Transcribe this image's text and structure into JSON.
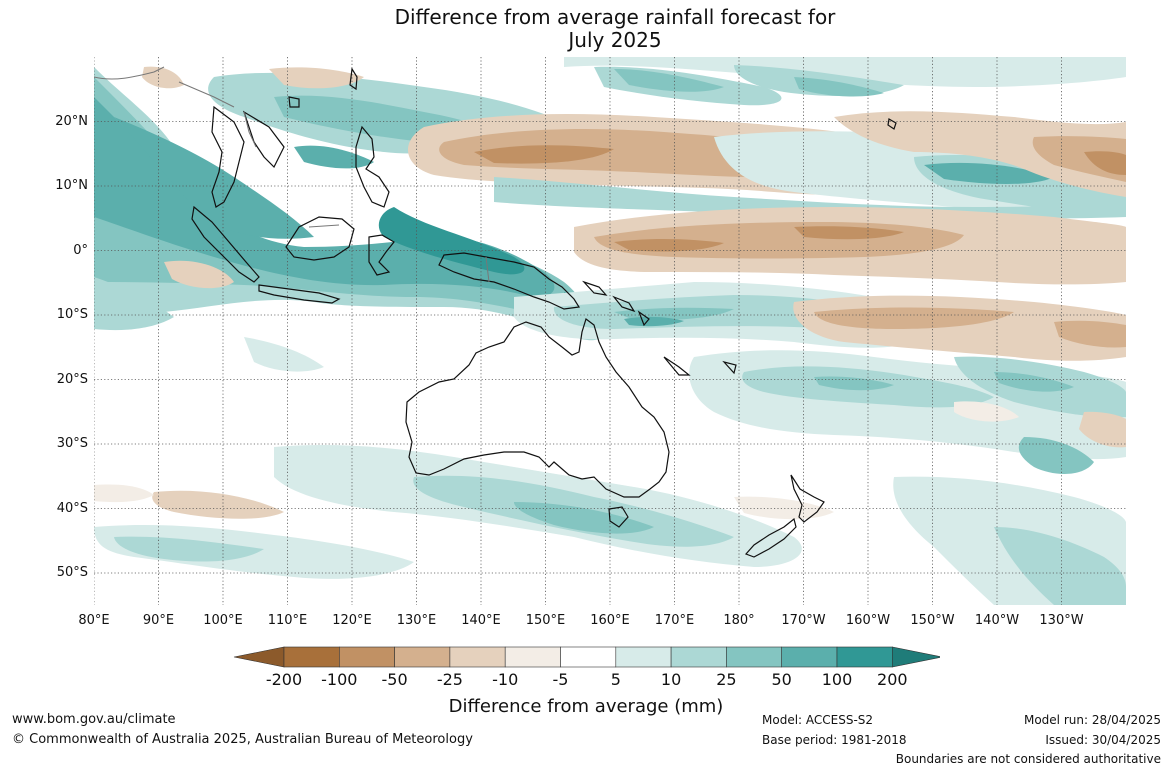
{
  "title": {
    "line1": "Difference from average rainfall forecast for",
    "line2": "July 2025"
  },
  "map": {
    "projection": "equirectangular",
    "lon_range_east": [
      80,
      240
    ],
    "lat_range": [
      -55,
      30
    ],
    "graticule": "dotted",
    "lat_labels": [
      {
        "lat": 20,
        "text": "20°N"
      },
      {
        "lat": 10,
        "text": "10°N"
      },
      {
        "lat": 0,
        "text": "0°"
      },
      {
        "lat": -10,
        "text": "10°S"
      },
      {
        "lat": -20,
        "text": "20°S"
      },
      {
        "lat": -30,
        "text": "30°S"
      },
      {
        "lat": -40,
        "text": "40°S"
      },
      {
        "lat": -50,
        "text": "50°S"
      }
    ],
    "lon_labels": [
      {
        "lon": 80,
        "text": "80°E"
      },
      {
        "lon": 90,
        "text": "90°E"
      },
      {
        "lon": 100,
        "text": "100°E"
      },
      {
        "lon": 110,
        "text": "110°E"
      },
      {
        "lon": 120,
        "text": "120°E"
      },
      {
        "lon": 130,
        "text": "130°E"
      },
      {
        "lon": 140,
        "text": "140°E"
      },
      {
        "lon": 150,
        "text": "150°E"
      },
      {
        "lon": 160,
        "text": "160°E"
      },
      {
        "lon": 170,
        "text": "170°E"
      },
      {
        "lon": 180,
        "text": "180°"
      },
      {
        "lon": 190,
        "text": "170°W"
      },
      {
        "lon": 200,
        "text": "160°W"
      },
      {
        "lon": 210,
        "text": "150°W"
      },
      {
        "lon": 220,
        "text": "140°W"
      },
      {
        "lon": 230,
        "text": "130°W"
      }
    ]
  },
  "legend": {
    "title": "Difference from average (mm)",
    "ticks": [
      "-200",
      "-100",
      "-50",
      "-25",
      "-10",
      "-5",
      "5",
      "10",
      "25",
      "50",
      "100",
      "200"
    ],
    "colors": [
      "#a8703a",
      "#c19164",
      "#d4b08e",
      "#e5d1bd",
      "#f3ede6",
      "#ffffff",
      "#d7ebe9",
      "#acd8d5",
      "#84c5c1",
      "#5bafac",
      "#309895"
    ],
    "under_color": "#8c5a2b",
    "over_color": "#1f7c79"
  },
  "footer": {
    "url": "www.bom.gov.au/climate",
    "copyright": "© Commonwealth of Australia 2025, Australian Bureau of Meteorology",
    "model": "Model: ACCESS-S2",
    "base_period": "Base period: 1981-2018",
    "model_run": "Model run: 28/04/2025",
    "issued": "Issued: 30/04/2025",
    "disclaimer": "Boundaries are not considered authoritative"
  }
}
